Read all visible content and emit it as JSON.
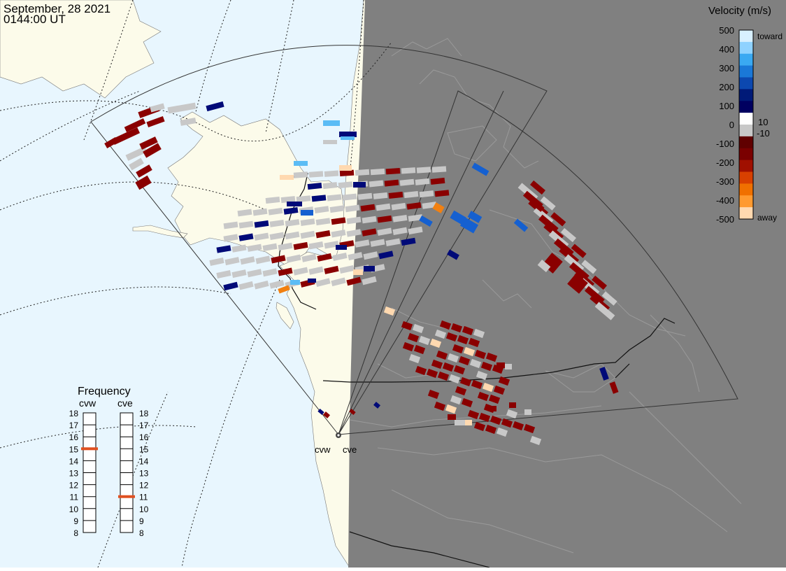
{
  "header": {
    "date": "September, 28 2021",
    "time": "0144:00 UT"
  },
  "colors": {
    "ocean_day": "#e8f6fe",
    "land_day": "#fcfbea",
    "night": "#808080",
    "night_land_outline": "#9a9a9a",
    "ground_scatter": "#c8c8c8"
  },
  "velocity_legend": {
    "title": "Velocity (m/s)",
    "tick_labels": [
      "500",
      "400",
      "300",
      "200",
      "100",
      "10",
      "0",
      "-10",
      "-100",
      "-200",
      "-300",
      "-400",
      "-500"
    ],
    "toward_label": "toward",
    "away_label": "away",
    "range": [
      -500,
      500
    ],
    "colors_top_to_bottom": [
      "#d8f0ff",
      "#8fd2ff",
      "#3aa9f2",
      "#1a78d8",
      "#0c48b0",
      "#001a78",
      "#000060",
      "#ffffff",
      "#c8c8c8",
      "#600000",
      "#7a0000",
      "#a01000",
      "#d84000",
      "#f07000",
      "#ff9a30",
      "#ffd9b0"
    ]
  },
  "frequency_legend": {
    "title": "Frequency",
    "radars": [
      {
        "name": "cvw",
        "frequency_mhz": 15
      },
      {
        "name": "cve",
        "frequency_mhz": 11
      }
    ],
    "scale_labels": [
      "18",
      "17",
      "16",
      "15",
      "14",
      "13",
      "12",
      "11",
      "10",
      "9",
      "8"
    ],
    "marker_color": "#e05020"
  },
  "radar_sites": [
    {
      "name": "cvw",
      "label": "cvw"
    },
    {
      "name": "cve",
      "label": "cve"
    }
  ]
}
